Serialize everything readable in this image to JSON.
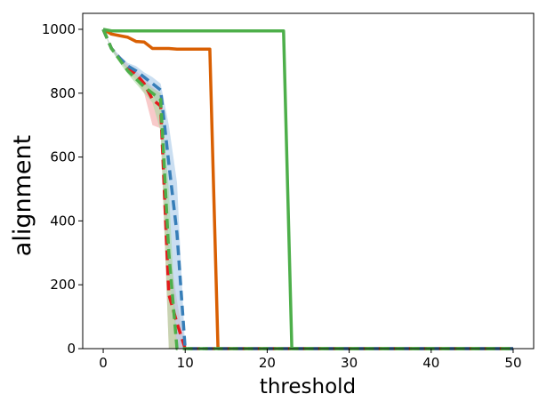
{
  "chart_data": {
    "type": "line",
    "title": "",
    "xlabel": "threshold",
    "ylabel": "alignment",
    "xlim": [
      -2.5,
      52.5
    ],
    "ylim": [
      0,
      1050
    ],
    "xticks": [
      0,
      10,
      20,
      30,
      40,
      50
    ],
    "yticks": [
      0,
      200,
      400,
      600,
      800,
      1000
    ],
    "grid": false,
    "legend": "none",
    "series": [
      {
        "color": "#d95f02",
        "style": "solid",
        "x": [
          0,
          1,
          2,
          3,
          4,
          5,
          6,
          7,
          8,
          9,
          10,
          11,
          12,
          13,
          14,
          15,
          20,
          30,
          40,
          50
        ],
        "y": [
          1000,
          985,
          980,
          975,
          962,
          960,
          940,
          940,
          940,
          938,
          938,
          938,
          938,
          938,
          0,
          0,
          0,
          0,
          0,
          0
        ]
      },
      {
        "color": "#4daf4a",
        "style": "solid",
        "x": [
          0,
          1,
          5,
          10,
          15,
          20,
          22,
          23,
          30,
          40,
          50
        ],
        "y": [
          1000,
          995,
          995,
          995,
          995,
          995,
          995,
          0,
          0,
          0,
          0
        ]
      },
      {
        "color": "#e41a1c",
        "style": "dashed",
        "x": [
          0,
          1,
          2,
          3,
          4,
          5,
          6,
          7,
          8,
          9,
          10,
          15,
          20,
          30,
          40,
          50
        ],
        "y": [
          1000,
          940,
          910,
          880,
          860,
          830,
          780,
          760,
          170,
          80,
          0,
          0,
          0,
          0,
          0,
          0
        ],
        "band_lower": [
          1000,
          940,
          900,
          870,
          840,
          800,
          700,
          690,
          0,
          0,
          0,
          0,
          0,
          0,
          0,
          0
        ],
        "band_upper": [
          1000,
          945,
          915,
          890,
          870,
          845,
          820,
          800,
          330,
          150,
          0,
          0,
          0,
          0,
          0,
          0
        ],
        "band_color": "#f4a6a6"
      },
      {
        "color": "#377eb8",
        "style": "dashed",
        "x": [
          0,
          1,
          2,
          3,
          4,
          5,
          6,
          7,
          8,
          9,
          10,
          15,
          20,
          30,
          40,
          50
        ],
        "y": [
          1000,
          940,
          910,
          885,
          870,
          850,
          830,
          810,
          580,
          360,
          0,
          0,
          0,
          0,
          0,
          0
        ],
        "band_lower": [
          1000,
          935,
          900,
          875,
          855,
          830,
          800,
          740,
          250,
          0,
          0,
          0,
          0,
          0,
          0,
          0
        ],
        "band_upper": [
          1000,
          945,
          918,
          895,
          885,
          865,
          850,
          830,
          700,
          520,
          0,
          0,
          0,
          0,
          0,
          0
        ],
        "band_color": "#a6c8e8"
      },
      {
        "color": "#4daf4a",
        "style": "dashed",
        "x": [
          0,
          1,
          2,
          3,
          4,
          5,
          6,
          7,
          8,
          9,
          10,
          15,
          20,
          30,
          40,
          50
        ],
        "y": [
          1000,
          940,
          905,
          870,
          845,
          820,
          800,
          780,
          300,
          0,
          0,
          0,
          0,
          0,
          0,
          0
        ],
        "band_lower": [
          1000,
          935,
          895,
          860,
          830,
          800,
          770,
          680,
          0,
          0,
          0,
          0,
          0,
          0,
          0,
          0
        ],
        "band_upper": [
          1000,
          945,
          910,
          880,
          858,
          835,
          815,
          800,
          500,
          0,
          0,
          0,
          0,
          0,
          0,
          0
        ],
        "band_color": "#a8d8a0"
      }
    ]
  }
}
